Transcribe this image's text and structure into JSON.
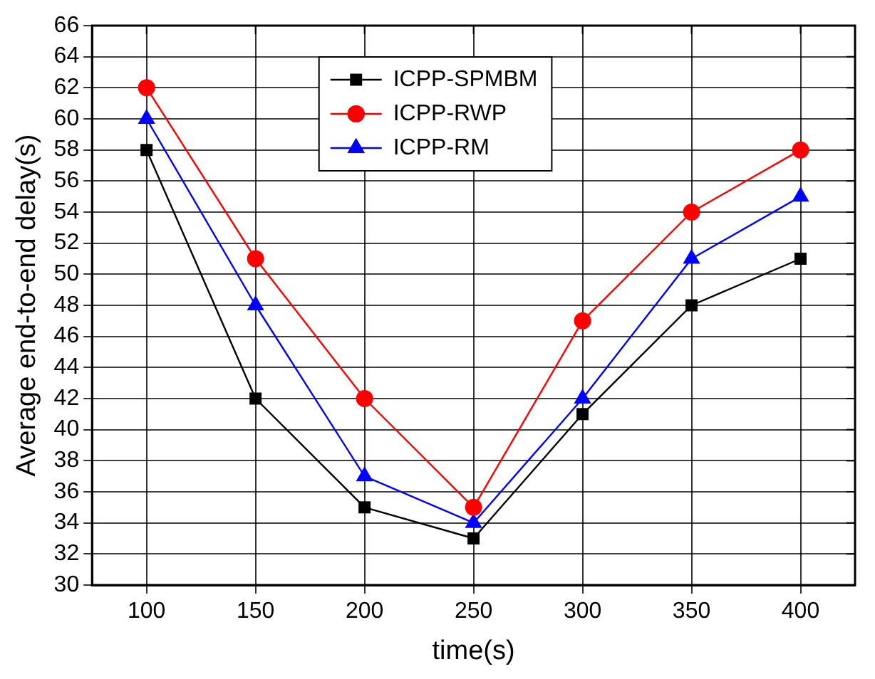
{
  "chart_data": {
    "type": "line",
    "xlabel": "time(s)",
    "ylabel": "Average end-to-end delay(s)",
    "x": [
      100,
      150,
      200,
      250,
      300,
      350,
      400
    ],
    "series": [
      {
        "name": "ICPP-SPMBM",
        "color": "#000000",
        "marker": "square",
        "values": [
          58,
          42,
          35,
          33,
          41,
          48,
          51
        ]
      },
      {
        "name": "ICPP-RWP",
        "color": "#ff0000",
        "marker": "circle",
        "values": [
          62,
          51,
          42,
          35,
          47,
          54,
          58
        ]
      },
      {
        "name": "ICPP-RM",
        "color": "#0000ff",
        "marker": "triangle",
        "values": [
          60,
          48,
          37,
          34,
          42,
          51,
          55
        ]
      }
    ],
    "xlim": [
      75,
      425
    ],
    "xticks": [
      100,
      150,
      200,
      250,
      300,
      350,
      400
    ],
    "ylim": [
      30,
      66
    ],
    "yticks": [
      30,
      32,
      34,
      36,
      38,
      40,
      42,
      44,
      46,
      48,
      50,
      52,
      54,
      56,
      58,
      60,
      62,
      64,
      66
    ],
    "grid": true,
    "legend": "top",
    "line_style": "solid"
  }
}
